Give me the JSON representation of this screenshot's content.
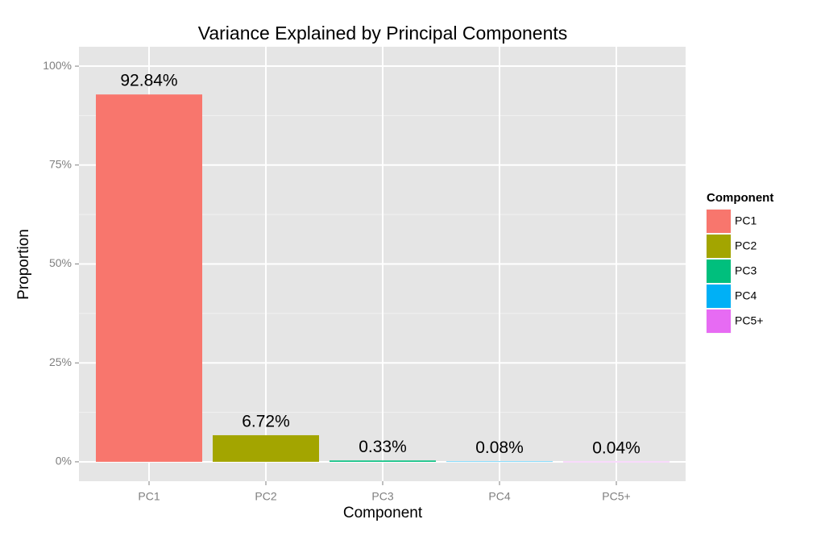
{
  "chart_data": {
    "type": "bar",
    "title": "Variance Explained by Principal Components",
    "x_label": "Component",
    "y_label": "Proportion",
    "legend_title": "Component",
    "legend_position": "right",
    "categories": [
      "PC1",
      "PC2",
      "PC3",
      "PC4",
      "PC5+"
    ],
    "values": [
      92.84,
      6.72,
      0.33,
      0.08,
      0.04
    ],
    "value_labels": [
      "92.84%",
      "6.72%",
      "0.33%",
      "0.08%",
      "0.04%"
    ],
    "colors": [
      "#F8766D",
      "#A3A500",
      "#00BF7D",
      "#00B0F6",
      "#E76BF3"
    ],
    "ylim": [
      -4.9,
      104.9
    ],
    "yticks": [
      {
        "value": 0,
        "label": "0%"
      },
      {
        "value": 25,
        "label": "25%"
      },
      {
        "value": 50,
        "label": "50%"
      },
      {
        "value": 75,
        "label": "75%"
      },
      {
        "value": 100,
        "label": "100%"
      }
    ],
    "minor_yticks": [
      12.5,
      37.5,
      62.5,
      87.5
    ],
    "grid": true
  }
}
